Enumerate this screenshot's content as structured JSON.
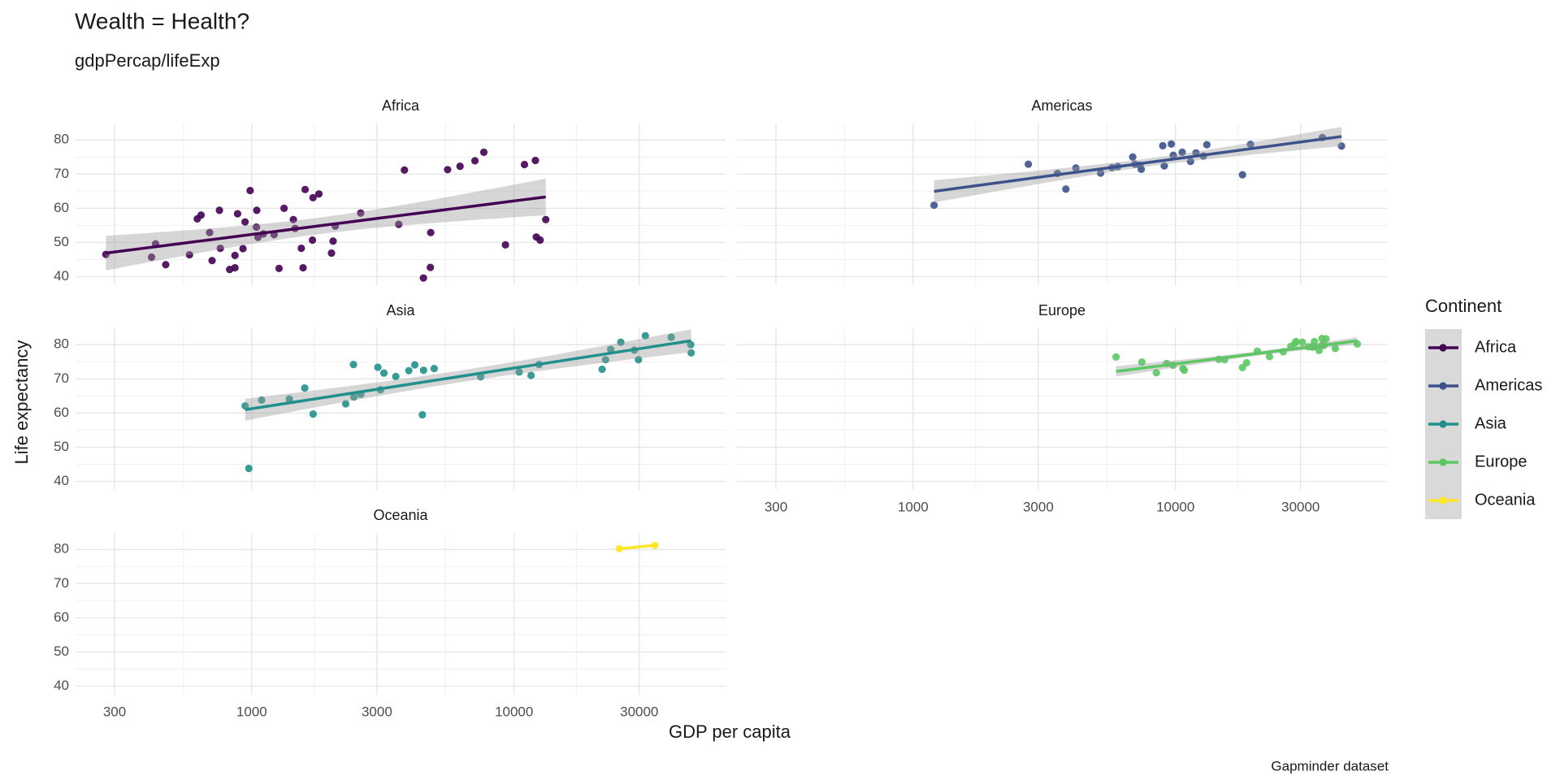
{
  "chart_data": {
    "type": "scatter",
    "title": "Wealth = Health?",
    "subtitle": "gdpPercap/lifeExp",
    "caption": "Gapminder dataset",
    "x_label": "GDP per capita",
    "y_label": "Life expectancy",
    "legend_title": "Continent",
    "log_x": true,
    "grid": true,
    "smooth": "lm",
    "legend_position": "right",
    "xlim": [
      213,
      64000
    ],
    "xticks": [
      300,
      1000,
      3000,
      10000,
      30000
    ],
    "ylim": [
      37.5,
      84.8
    ],
    "yticks": [
      40,
      50,
      60,
      70,
      80
    ],
    "series": [
      {
        "name": "Africa",
        "color": "#440154",
        "x": [
          6223,
          4797,
          1441,
          12570,
          1217,
          430,
          2042,
          706,
          1704,
          986,
          278,
          3633,
          1545,
          2082,
          5581,
          12154,
          641,
          691,
          13206,
          753,
          1328,
          943,
          579,
          1463,
          1569,
          415,
          12057,
          1045,
          759,
          1042,
          1803,
          10957,
          3820,
          824,
          4811,
          620,
          2014,
          7670,
          863,
          1598,
          1712,
          863,
          926,
          9270,
          2602,
          4513,
          1107,
          883,
          7093,
          1056,
          1271,
          470
        ],
        "values": [
          72.3,
          42.7,
          56.7,
          50.7,
          52.3,
          49.6,
          50.4,
          44.7,
          50.7,
          65.2,
          46.5,
          55.3,
          48.3,
          54.8,
          71.3,
          51.6,
          58.0,
          52.9,
          56.7,
          59.4,
          60.0,
          56.0,
          46.4,
          54.1,
          42.6,
          45.7,
          74.0,
          59.4,
          48.3,
          54.5,
          64.2,
          72.8,
          71.2,
          42.1,
          52.9,
          56.9,
          46.9,
          76.4,
          46.2,
          65.5,
          63.1,
          42.6,
          48.2,
          49.3,
          58.6,
          39.6,
          52.5,
          58.4,
          73.9,
          51.5,
          42.4,
          43.5
        ]
      },
      {
        "name": "Americas",
        "color": "#3B528B",
        "x": [
          12779,
          3822,
          9066,
          36319,
          13172,
          7007,
          9645,
          8948,
          6025,
          6873,
          5728,
          5186,
          1202,
          3548,
          7321,
          11978,
          2749,
          9809,
          4173,
          7409,
          19329,
          18009,
          42952,
          10611,
          11416
        ],
        "values": [
          75.3,
          65.6,
          72.4,
          80.7,
          78.6,
          72.9,
          78.8,
          78.3,
          72.2,
          75.0,
          71.9,
          70.3,
          60.9,
          70.2,
          72.6,
          76.2,
          72.9,
          75.5,
          71.8,
          71.4,
          78.7,
          69.8,
          78.2,
          76.4,
          73.7
        ]
      },
      {
        "name": "Asia",
        "color": "#21908C",
        "x": [
          975,
          29796,
          1391,
          1714,
          4959,
          39725,
          2452,
          3541,
          11606,
          4471,
          25523,
          31656,
          4519,
          1593,
          23348,
          47307,
          10461,
          12452,
          3096,
          944,
          1091,
          22316,
          2606,
          3190,
          21655,
          47143,
          3970,
          4185,
          28718,
          7458,
          2442,
          3025,
          2281
        ],
        "values": [
          43.8,
          75.6,
          64.1,
          59.7,
          73.0,
          82.2,
          64.7,
          70.7,
          71.0,
          59.5,
          80.7,
          82.6,
          72.5,
          67.3,
          78.6,
          77.6,
          72.0,
          74.2,
          66.8,
          62.1,
          63.8,
          75.6,
          65.5,
          71.7,
          72.8,
          80.0,
          72.4,
          74.1,
          78.4,
          70.6,
          74.2,
          73.4,
          62.7
        ]
      },
      {
        "name": "Europe",
        "color": "#5DC863",
        "x": [
          5937,
          36126,
          33693,
          7446,
          10681,
          14619,
          22833,
          35278,
          33207,
          30470,
          32170,
          27538,
          18009,
          36181,
          40676,
          28570,
          9254,
          36798,
          49357,
          15390,
          20510,
          10808,
          9787,
          18678,
          25768,
          28821,
          33860,
          37506,
          8458,
          33203
        ],
        "values": [
          76.4,
          79.8,
          79.4,
          74.9,
          73.0,
          75.7,
          76.5,
          78.3,
          79.3,
          80.7,
          79.4,
          79.5,
          73.3,
          81.8,
          78.9,
          80.5,
          74.5,
          79.8,
          80.2,
          75.6,
          78.1,
          72.5,
          74.0,
          74.7,
          77.9,
          80.9,
          80.9,
          81.7,
          71.8,
          79.4
        ]
      },
      {
        "name": "Oceania",
        "color": "#FDE725",
        "x": [
          34435,
          25185
        ],
        "values": [
          81.2,
          80.2
        ]
      }
    ]
  }
}
